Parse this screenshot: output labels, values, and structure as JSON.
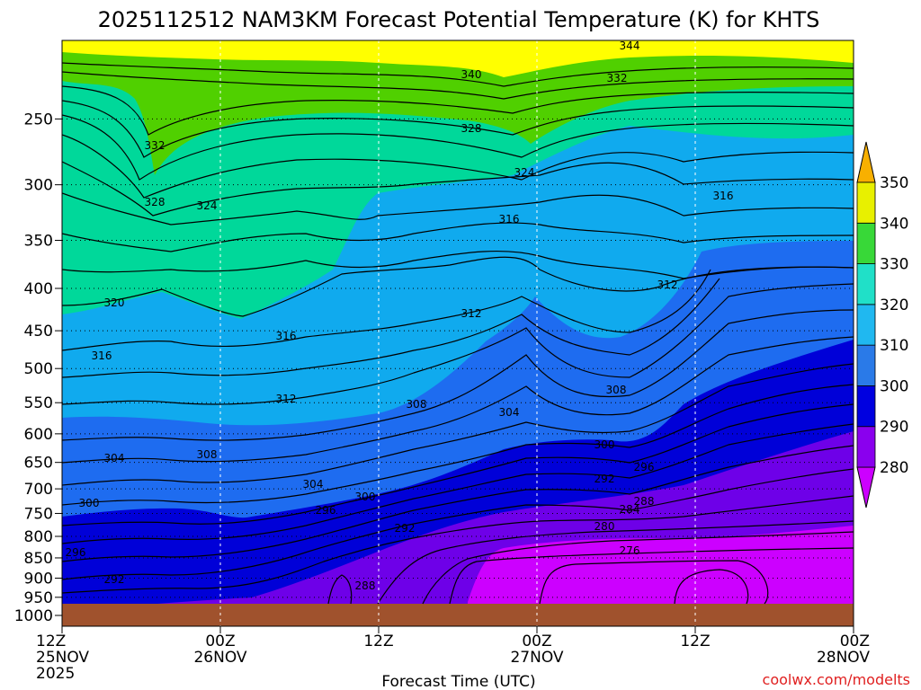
{
  "chart_data": {
    "type": "heatmap",
    "title": "2025112512 NAM3KM Forecast Potential Temperature (K) for KHTS",
    "xlabel": "Forecast Time (UTC)",
    "ylabel": "",
    "credit": "coolwx.com/modelts",
    "y_scale": "log",
    "ylim": [
      1000,
      200
    ],
    "y_ticks": [
      250,
      300,
      350,
      400,
      450,
      500,
      550,
      600,
      650,
      700,
      750,
      800,
      850,
      900,
      950,
      1000
    ],
    "x_ticks": [
      {
        "time": "2025-11-25 12Z",
        "line1": "12Z",
        "line2": "25NOV",
        "line3": "2025"
      },
      {
        "time": "2025-11-26 00Z",
        "line1": "00Z",
        "line2": "26NOV",
        "line3": ""
      },
      {
        "time": "2025-11-26 12Z",
        "line1": "12Z",
        "line2": "",
        "line3": ""
      },
      {
        "time": "2025-11-27 00Z",
        "line1": "00Z",
        "line2": "27NOV",
        "line3": ""
      },
      {
        "time": "2025-11-27 12Z",
        "line1": "12Z",
        "line2": "",
        "line3": ""
      },
      {
        "time": "2025-11-28 00Z",
        "line1": "00Z",
        "line2": "28NOV",
        "line3": ""
      }
    ],
    "grid": true,
    "colorbar": {
      "levels": [
        280,
        290,
        300,
        310,
        320,
        330,
        340,
        350
      ],
      "colors": [
        "#9b00ff",
        "#3a00e8",
        "#0000d8",
        "#1e6cf0",
        "#10aaee",
        "#00d8c0",
        "#1ee080",
        "#50d000",
        "#c8e800",
        "#ffff00",
        "#ffb400"
      ],
      "label_colors": [
        "#cc00ff",
        "#8a00ee",
        "#0000e0",
        "#2a7ae8",
        "#20b8f0",
        "#20e0c8",
        "#38d838",
        "#e8f000",
        "#f8b000"
      ]
    },
    "contour_labels": [
      "344",
      "340",
      "332",
      "332",
      "328",
      "324",
      "328",
      "324",
      "316",
      "316",
      "320",
      "312",
      "316",
      "312",
      "316",
      "312",
      "308",
      "308",
      "304",
      "304",
      "308",
      "300",
      "296",
      "300",
      "304",
      "292",
      "296",
      "292",
      "288",
      "284",
      "280",
      "276",
      "300",
      "296",
      "292",
      "288"
    ]
  }
}
